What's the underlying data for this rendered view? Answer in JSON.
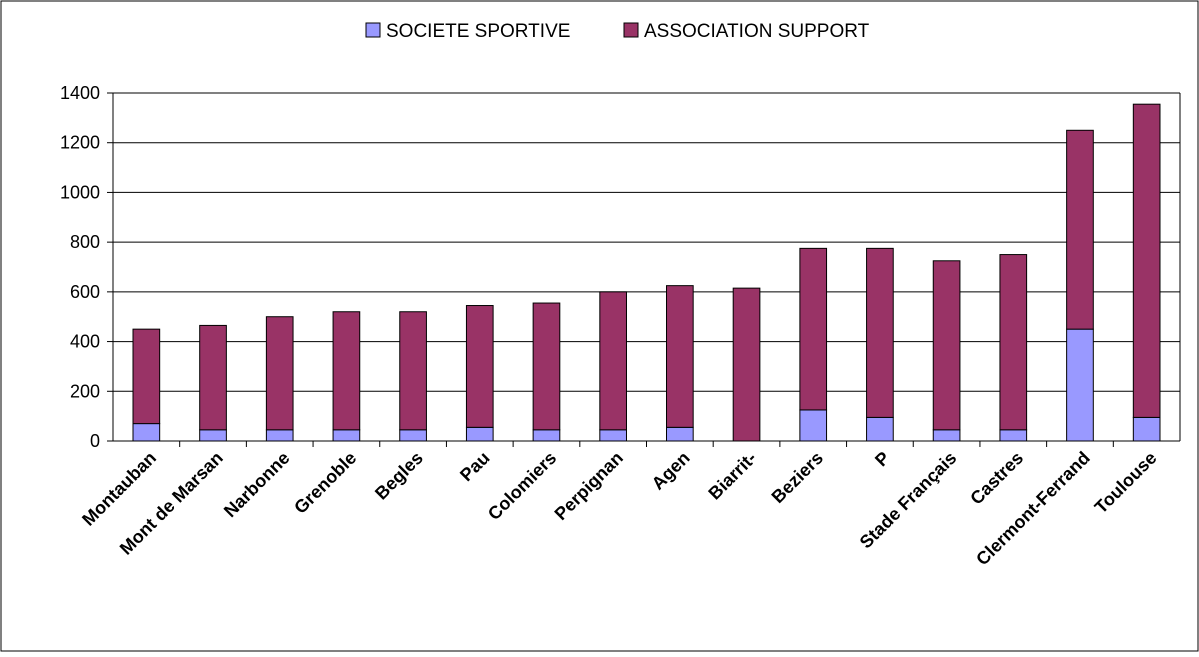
{
  "chart_data": {
    "type": "bar",
    "stacked": true,
    "categories": [
      "Montauban",
      "Mont de Marsan",
      "Narbonne",
      "Grenoble",
      "Begles",
      "Pau",
      "Colomiers",
      "Perpignan",
      "Agen",
      "Biarrit-",
      "Beziers",
      "P",
      "Stade Français",
      "Castres",
      "Clermont-Ferrand",
      "Toulouse"
    ],
    "series": [
      {
        "name": "SOCIETE SPORTIVE",
        "color": "#9999ff",
        "values": [
          70,
          45,
          45,
          45,
          45,
          55,
          45,
          45,
          55,
          0,
          125,
          95,
          45,
          45,
          450,
          95
        ]
      },
      {
        "name": "ASSOCIATION SUPPORT",
        "color": "#993366",
        "values": [
          380,
          420,
          455,
          475,
          475,
          490,
          510,
          555,
          570,
          615,
          650,
          680,
          680,
          705,
          800,
          1260
        ]
      }
    ],
    "yticks": [
      0,
      200,
      400,
      600,
      800,
      1000,
      1200,
      1400
    ],
    "ylim": [
      0,
      1400
    ],
    "grid": true,
    "legend_position": "top-center",
    "title": "",
    "xlabel": "",
    "ylabel": ""
  }
}
